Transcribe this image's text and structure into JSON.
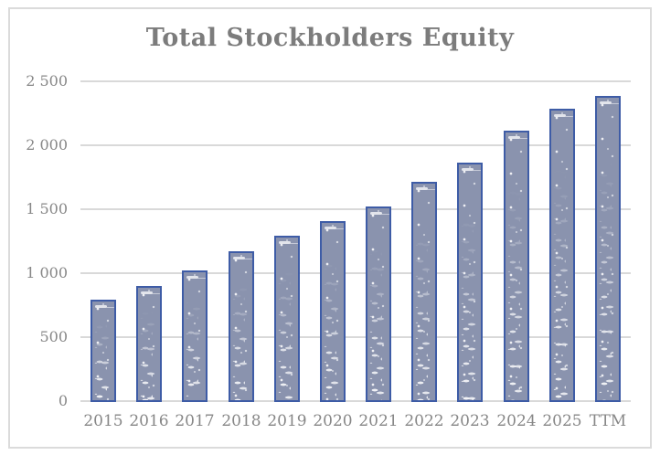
{
  "chart_data": {
    "type": "bar",
    "title": "Total Stockholders Equity",
    "categories": [
      "2015",
      "2016",
      "2017",
      "2018",
      "2019",
      "2020",
      "2021",
      "2022",
      "2023",
      "2024",
      "2025",
      "TTM"
    ],
    "values": [
      800,
      910,
      1030,
      1180,
      1300,
      1415,
      1530,
      1720,
      1870,
      2120,
      2290,
      2390
    ],
    "xlabel": "",
    "ylabel": "",
    "ylim": [
      0,
      2500
    ],
    "yticks": [
      0,
      500,
      1000,
      1500,
      2000,
      2500
    ],
    "ytick_labels": [
      "0",
      "500",
      "1 000",
      "1 500",
      "2 000",
      "2 500"
    ],
    "grid": true,
    "legend": false,
    "layout": {
      "legend_position": "none",
      "gridlines": "horizontal"
    },
    "colors": {
      "bar_fill": "#8A93AE",
      "bar_border": "#3E5CA6",
      "grid_line": "#D9D9D9",
      "frame_border": "#DBDBDB",
      "title_text": "#7C7C7C",
      "axis_text": "#878787",
      "background": "#FFFFFF"
    }
  }
}
